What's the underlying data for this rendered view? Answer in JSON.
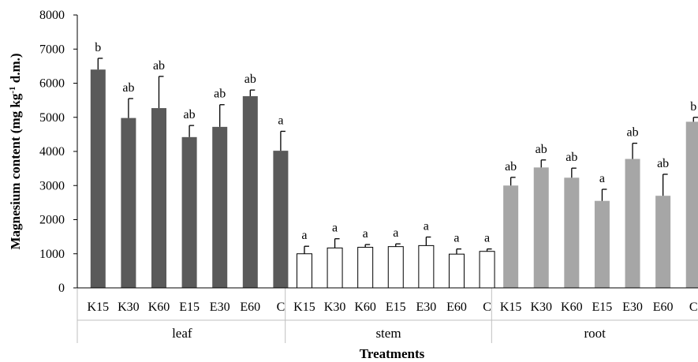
{
  "chart_data": {
    "type": "bar",
    "xlabel": "Treatments",
    "ylabel": "Magnesium content (mg kg-1 d.m.)",
    "ylabel_parts": {
      "before": "Magnesium content (mg kg",
      "sup": "-1",
      "after": " d.m.)"
    },
    "ylim": [
      0,
      8000
    ],
    "yticks": [
      "0",
      "1000",
      "2000",
      "3000",
      "4000",
      "5000",
      "6000",
      "7000",
      "8000"
    ],
    "grid": false,
    "legend": "none",
    "groups": [
      {
        "name": "leaf",
        "color": "#5a5a5a",
        "bars": [
          {
            "label": "K15",
            "value": 6400,
            "error": 330,
            "sig": "b"
          },
          {
            "label": "K30",
            "value": 4980,
            "error": 570,
            "sig": "ab"
          },
          {
            "label": "K60",
            "value": 5270,
            "error": 930,
            "sig": "ab"
          },
          {
            "label": "E15",
            "value": 4420,
            "error": 340,
            "sig": "ab"
          },
          {
            "label": "E30",
            "value": 4720,
            "error": 650,
            "sig": "ab"
          },
          {
            "label": "E60",
            "value": 5620,
            "error": 180,
            "sig": "ab"
          },
          {
            "label": "C",
            "value": 4020,
            "error": 570,
            "sig": "a"
          }
        ]
      },
      {
        "name": "stem",
        "color": "#ffffff",
        "bars": [
          {
            "label": "K15",
            "value": 1000,
            "error": 220,
            "sig": "a"
          },
          {
            "label": "K30",
            "value": 1170,
            "error": 270,
            "sig": "a"
          },
          {
            "label": "K60",
            "value": 1190,
            "error": 80,
            "sig": "a"
          },
          {
            "label": "E15",
            "value": 1210,
            "error": 80,
            "sig": "a"
          },
          {
            "label": "E30",
            "value": 1240,
            "error": 250,
            "sig": "a"
          },
          {
            "label": "E60",
            "value": 990,
            "error": 150,
            "sig": "a"
          },
          {
            "label": "C",
            "value": 1070,
            "error": 70,
            "sig": "a"
          }
        ]
      },
      {
        "name": "root",
        "color": "#a6a6a6",
        "bars": [
          {
            "label": "K15",
            "value": 3000,
            "error": 240,
            "sig": "ab"
          },
          {
            "label": "K30",
            "value": 3530,
            "error": 220,
            "sig": "ab"
          },
          {
            "label": "K60",
            "value": 3230,
            "error": 280,
            "sig": "ab"
          },
          {
            "label": "E15",
            "value": 2550,
            "error": 340,
            "sig": "a"
          },
          {
            "label": "E30",
            "value": 3780,
            "error": 460,
            "sig": "ab"
          },
          {
            "label": "E60",
            "value": 2700,
            "error": 630,
            "sig": "ab"
          },
          {
            "label": "C",
            "value": 4870,
            "error": 130,
            "sig": "b"
          }
        ]
      }
    ]
  }
}
